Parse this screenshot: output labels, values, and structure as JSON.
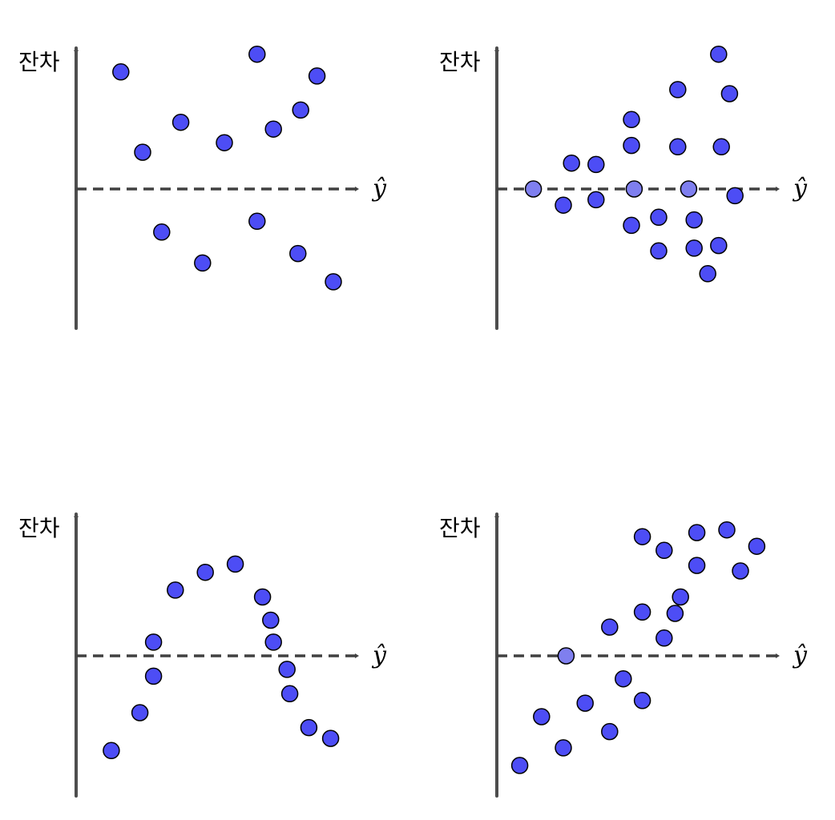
{
  "colors": {
    "axis": "#4d4d4d",
    "baseline": "#404040",
    "point_fill": "#4d4df5",
    "point_fill_on_line": "#7f7fef",
    "point_stroke": "#000000",
    "label": "#000000"
  },
  "chart_data": [
    {
      "type": "scatter",
      "ylabel": "잔차",
      "xlabel": "ŷ",
      "xlim": [
        0,
        10
      ],
      "ylim": [
        -10,
        10
      ],
      "reference_line": {
        "y": 0,
        "style": "dashed"
      },
      "points": [
        {
          "x": 1.2,
          "y": 8.6
        },
        {
          "x": 2.0,
          "y": 2.7
        },
        {
          "x": 3.4,
          "y": 4.9
        },
        {
          "x": 5.0,
          "y": 3.4
        },
        {
          "x": 6.2,
          "y": 9.9
        },
        {
          "x": 6.8,
          "y": 4.4
        },
        {
          "x": 7.8,
          "y": 5.8
        },
        {
          "x": 8.4,
          "y": 8.3
        },
        {
          "x": 2.7,
          "y": -3.2
        },
        {
          "x": 4.2,
          "y": -5.5
        },
        {
          "x": 6.2,
          "y": -2.4
        },
        {
          "x": 7.7,
          "y": -4.8
        },
        {
          "x": 9.0,
          "y": -6.9
        }
      ]
    },
    {
      "type": "scatter",
      "ylabel": "잔차",
      "xlabel": "ŷ",
      "xlim": [
        0,
        10
      ],
      "ylim": [
        -10,
        10
      ],
      "reference_line": {
        "y": 0,
        "style": "dashed"
      },
      "points": [
        {
          "x": 0.9,
          "y": 0.0,
          "on_line": true
        },
        {
          "x": 2.3,
          "y": 1.9
        },
        {
          "x": 2.0,
          "y": -1.2
        },
        {
          "x": 3.2,
          "y": 1.8
        },
        {
          "x": 3.2,
          "y": -0.8
        },
        {
          "x": 4.5,
          "y": 5.1
        },
        {
          "x": 4.5,
          "y": 3.2
        },
        {
          "x": 4.6,
          "y": 0.0,
          "on_line": true
        },
        {
          "x": 4.5,
          "y": -2.7
        },
        {
          "x": 5.5,
          "y": -2.1
        },
        {
          "x": 5.5,
          "y": -4.6
        },
        {
          "x": 6.2,
          "y": 7.3
        },
        {
          "x": 6.2,
          "y": 3.1
        },
        {
          "x": 6.6,
          "y": 0.0,
          "on_line": true
        },
        {
          "x": 6.8,
          "y": -2.3
        },
        {
          "x": 6.8,
          "y": -4.4
        },
        {
          "x": 7.3,
          "y": -6.3
        },
        {
          "x": 7.7,
          "y": 9.9
        },
        {
          "x": 7.7,
          "y": -4.2
        },
        {
          "x": 7.8,
          "y": 3.1
        },
        {
          "x": 8.1,
          "y": 7.0
        },
        {
          "x": 8.3,
          "y": -0.5
        }
      ]
    },
    {
      "type": "scatter",
      "ylabel": "잔차",
      "xlabel": "ŷ",
      "xlim": [
        0,
        10
      ],
      "ylim": [
        -10,
        10
      ],
      "reference_line": {
        "y": 0,
        "style": "dashed"
      },
      "points": [
        {
          "x": 0.85,
          "y": -7.0
        },
        {
          "x": 1.9,
          "y": -4.2
        },
        {
          "x": 2.4,
          "y": 1.0
        },
        {
          "x": 2.4,
          "y": -1.5
        },
        {
          "x": 3.2,
          "y": 4.8
        },
        {
          "x": 4.3,
          "y": 6.1
        },
        {
          "x": 5.4,
          "y": 6.7
        },
        {
          "x": 6.4,
          "y": 4.3
        },
        {
          "x": 6.7,
          "y": 2.6
        },
        {
          "x": 6.8,
          "y": 1.0
        },
        {
          "x": 7.3,
          "y": -1.0
        },
        {
          "x": 7.4,
          "y": -2.8
        },
        {
          "x": 8.1,
          "y": -5.3
        },
        {
          "x": 8.9,
          "y": -6.1
        }
      ]
    },
    {
      "type": "scatter",
      "ylabel": "잔차",
      "xlabel": "ŷ",
      "xlim": [
        0,
        10
      ],
      "ylim": [
        -10,
        10
      ],
      "reference_line": {
        "y": 0,
        "style": "dashed"
      },
      "points": [
        {
          "x": 0.4,
          "y": -8.1
        },
        {
          "x": 1.2,
          "y": -4.5
        },
        {
          "x": 2.1,
          "y": 0.0,
          "on_line": true
        },
        {
          "x": 2.0,
          "y": -6.8
        },
        {
          "x": 2.8,
          "y": -3.5
        },
        {
          "x": 3.7,
          "y": 2.1
        },
        {
          "x": 3.7,
          "y": -5.6
        },
        {
          "x": 4.2,
          "y": -1.7
        },
        {
          "x": 4.9,
          "y": 3.2
        },
        {
          "x": 4.9,
          "y": -3.3
        },
        {
          "x": 4.9,
          "y": 8.7
        },
        {
          "x": 5.7,
          "y": 7.7
        },
        {
          "x": 5.7,
          "y": 1.3
        },
        {
          "x": 6.1,
          "y": 3.1
        },
        {
          "x": 6.3,
          "y": 4.3
        },
        {
          "x": 6.9,
          "y": 6.6
        },
        {
          "x": 6.9,
          "y": 9.0
        },
        {
          "x": 8.0,
          "y": 9.2
        },
        {
          "x": 8.5,
          "y": 6.2
        },
        {
          "x": 9.1,
          "y": 8.0
        }
      ]
    }
  ]
}
